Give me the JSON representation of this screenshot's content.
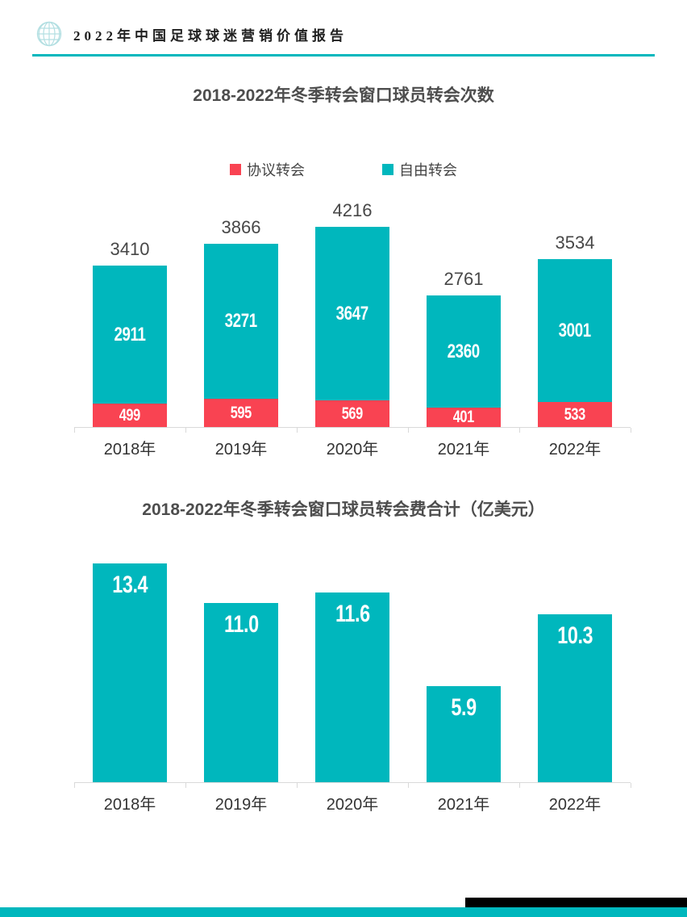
{
  "header": {
    "title": "2022年中国足球球迷营销价值报告",
    "logo_icon": "globe-icon"
  },
  "colors": {
    "accent_teal": "#00b7bd",
    "series_red": "#f94352",
    "logo_teal": "#b3dfe2",
    "axis_gray": "#d9d9d9",
    "title_gray": "#4d4d4d",
    "footer_black": "#000000"
  },
  "chart_data": [
    {
      "type": "bar",
      "stacked": true,
      "title": "2018-2022年冬季转会窗口球员转会次数",
      "categories": [
        "2018年",
        "2019年",
        "2020年",
        "2021年",
        "2022年"
      ],
      "series": [
        {
          "name": "协议转会",
          "color": "#f94352",
          "values": [
            499,
            595,
            569,
            401,
            533
          ]
        },
        {
          "name": "自由转会",
          "color": "#00b7bd",
          "values": [
            2911,
            3271,
            3647,
            2360,
            3001
          ]
        }
      ],
      "totals": [
        3410,
        3866,
        4216,
        2761,
        3534
      ],
      "ylim": [
        0,
        4216
      ],
      "legend_position": "top",
      "grid": false,
      "value_labels_inside": true
    },
    {
      "type": "bar",
      "stacked": false,
      "title": "2018-2022年冬季转会窗口球员转会费合计（亿美元）",
      "categories": [
        "2018年",
        "2019年",
        "2020年",
        "2021年",
        "2022年"
      ],
      "values": [
        13.4,
        11.0,
        11.6,
        5.9,
        10.3
      ],
      "value_labels": [
        "13.4",
        "11.0",
        "11.6",
        "5.9",
        "10.3"
      ],
      "ylim": [
        0,
        13.4
      ],
      "grid": false,
      "value_labels_inside": true
    }
  ]
}
